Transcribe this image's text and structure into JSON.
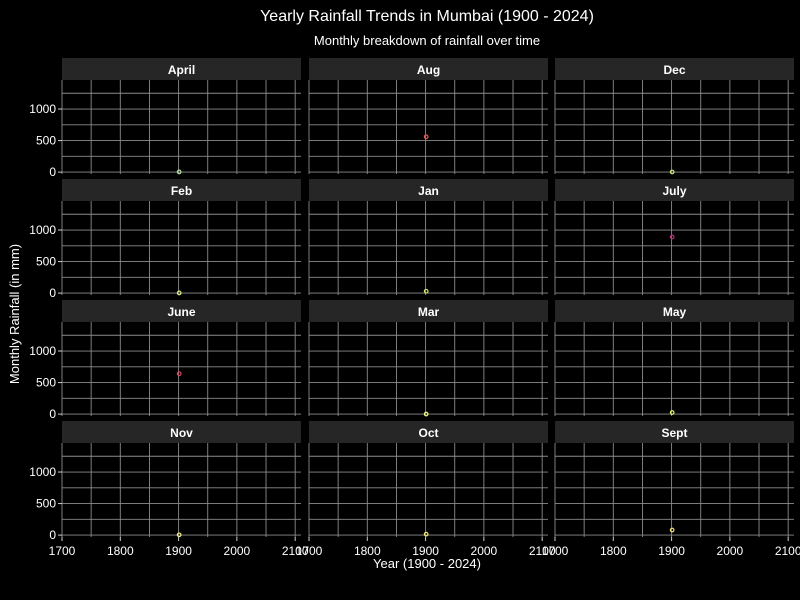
{
  "chart_data": {
    "type": "scatter",
    "title": "Yearly Rainfall Trends in Mumbai (1900 - 2024)",
    "subtitle": "Monthly breakdown of rainfall over time",
    "xlabel": "Year (1900 - 2024)",
    "ylabel": "Monthly Rainfall (in mm)",
    "xlim": [
      1700,
      2110
    ],
    "ylim": [
      -30,
      1460
    ],
    "x_ticks": [
      1700,
      1800,
      1900,
      2000,
      2100
    ],
    "x_tick_labels": [
      "1700",
      "1800",
      "1900",
      "2000",
      "2100"
    ],
    "y_ticks": [
      0,
      500,
      1000
    ],
    "y_tick_labels": [
      "0",
      "500",
      "1000"
    ],
    "grid": true,
    "panel_background": "#000000",
    "strip_background": "#262626",
    "facets": [
      {
        "name": "April",
        "color": "#b8e0a0",
        "points": [
          {
            "x": 1901,
            "y": 3
          }
        ]
      },
      {
        "name": "Aug",
        "color": "#e05a5a",
        "points": [
          {
            "x": 1901,
            "y": 560
          }
        ]
      },
      {
        "name": "Dec",
        "color": "#c8e878",
        "points": [
          {
            "x": 1901,
            "y": 2
          }
        ]
      },
      {
        "name": "Feb",
        "color": "#d8ec78",
        "points": [
          {
            "x": 1901,
            "y": 3
          }
        ]
      },
      {
        "name": "Jan",
        "color": "#cce870",
        "points": [
          {
            "x": 1901,
            "y": 30
          }
        ]
      },
      {
        "name": "July",
        "color": "#b02a78",
        "points": [
          {
            "x": 1901,
            "y": 890
          }
        ]
      },
      {
        "name": "June",
        "color": "#e0405a",
        "points": [
          {
            "x": 1901,
            "y": 640
          }
        ]
      },
      {
        "name": "Mar",
        "color": "#f0f880",
        "points": [
          {
            "x": 1901,
            "y": 1
          }
        ]
      },
      {
        "name": "May",
        "color": "#e8f070",
        "points": [
          {
            "x": 1901,
            "y": 25
          }
        ]
      },
      {
        "name": "Nov",
        "color": "#f0f080",
        "points": [
          {
            "x": 1901,
            "y": 4
          }
        ]
      },
      {
        "name": "Oct",
        "color": "#f0e870",
        "points": [
          {
            "x": 1901,
            "y": 15
          }
        ]
      },
      {
        "name": "Sept",
        "color": "#e8e070",
        "points": [
          {
            "x": 1901,
            "y": 80
          }
        ]
      }
    ]
  }
}
